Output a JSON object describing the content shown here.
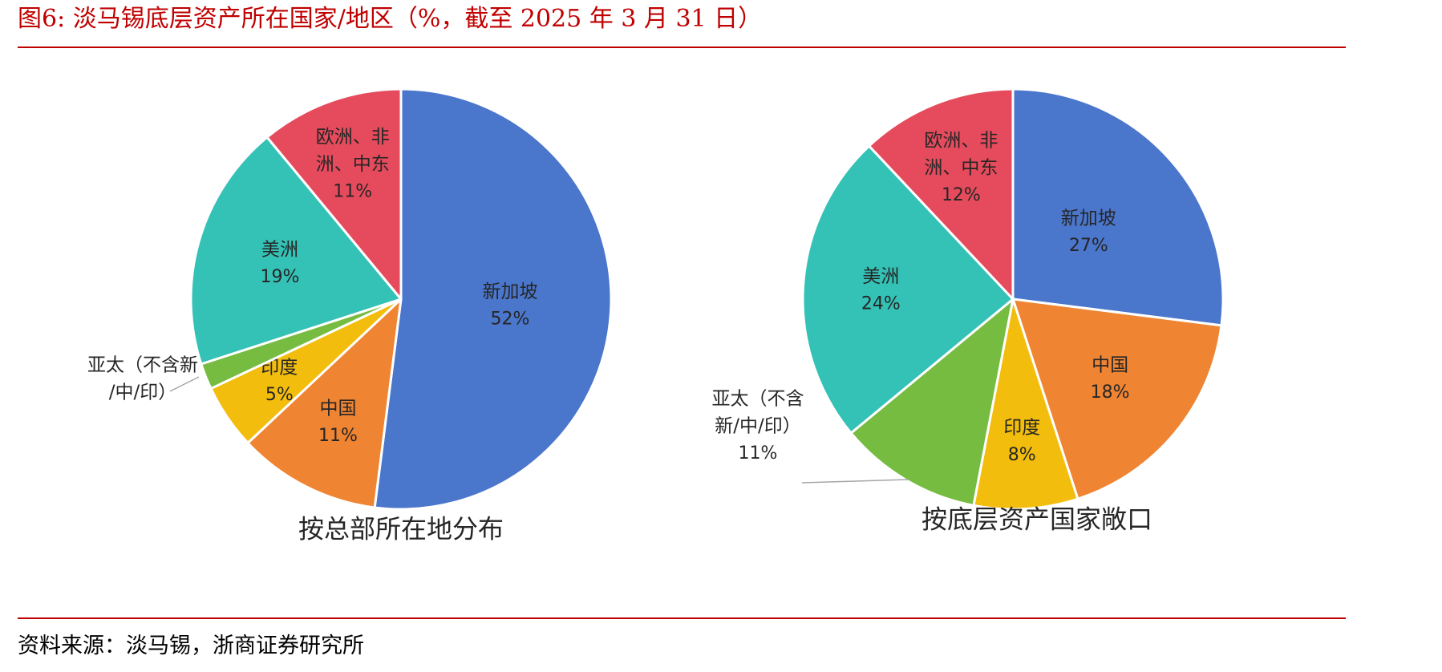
{
  "title": "图6:   淡马锡底层资产所在国家/地区（%，截至 2025 年 3 月 31 日）",
  "source": "资料来源：淡马锡，浙商证券研究所",
  "colors": {
    "title": "#c00000",
    "新加坡": "#4a76cc",
    "中国": "#ef8432",
    "印度": "#f2bd0c",
    "亚太（不含新/中/印）": "#76bc41",
    "美洲": "#34c1b6",
    "欧洲、非洲、中东": "#e54b5c"
  },
  "chart_data": [
    {
      "type": "pie",
      "title": "按总部所在地分布",
      "series": [
        {
          "name": "新加坡",
          "label_lines": [
            "新加坡"
          ],
          "pct_label": "52%",
          "value": 52,
          "color": "#4a76cc"
        },
        {
          "name": "中国",
          "label_lines": [
            "中国"
          ],
          "pct_label": "11%",
          "value": 11,
          "color": "#ef8432"
        },
        {
          "name": "印度",
          "label_lines": [
            "印度"
          ],
          "pct_label": "5%",
          "value": 5,
          "color": "#f2bd0c"
        },
        {
          "name": "亚太（不含新/中/印）",
          "label_lines": [
            "亚太（不含新",
            "/中/印）"
          ],
          "pct_label": "",
          "value": 2,
          "color": "#76bc41"
        },
        {
          "name": "美洲",
          "label_lines": [
            "美洲"
          ],
          "pct_label": "19%",
          "value": 19,
          "color": "#34c1b6"
        },
        {
          "name": "欧洲、非洲、中东",
          "label_lines": [
            "欧洲、非",
            "洲、中东"
          ],
          "pct_label": "11%",
          "value": 11,
          "color": "#e54b5c"
        }
      ]
    },
    {
      "type": "pie",
      "title": "按底层资产国家敞口",
      "series": [
        {
          "name": "新加坡",
          "label_lines": [
            "新加坡"
          ],
          "pct_label": "27%",
          "value": 27,
          "color": "#4a76cc"
        },
        {
          "name": "中国",
          "label_lines": [
            "中国"
          ],
          "pct_label": "18%",
          "value": 18,
          "color": "#ef8432"
        },
        {
          "name": "印度",
          "label_lines": [
            "印度"
          ],
          "pct_label": "8%",
          "value": 8,
          "color": "#f2bd0c"
        },
        {
          "name": "亚太（不含新/中/印）",
          "label_lines": [
            "亚太（不含",
            "新/中/印）"
          ],
          "pct_label": "11%",
          "value": 11,
          "color": "#76bc41"
        },
        {
          "name": "美洲",
          "label_lines": [
            "美洲"
          ],
          "pct_label": "24%",
          "value": 24,
          "color": "#34c1b6"
        },
        {
          "name": "欧洲、非洲、中东",
          "label_lines": [
            "欧洲、非",
            "洲、中东"
          ],
          "pct_label": "12%",
          "value": 12,
          "color": "#e54b5c"
        }
      ]
    }
  ]
}
